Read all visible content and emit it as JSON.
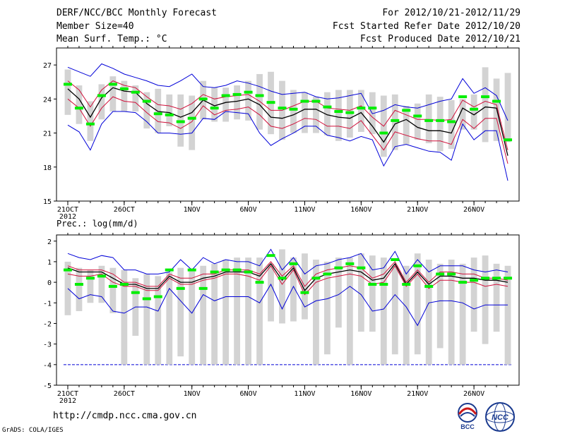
{
  "header": {
    "title": "DERF/NCC/BCC Monthly Forecast",
    "member_size": "Member Size=40",
    "variable": "Mean Surf. Temp.: °C",
    "period": "For 2012/10/21-2012/11/29",
    "fcst_started": "Fcst Started Refer Date 2012/10/20",
    "fcst_produced": "Fcst Produced Date 2012/10/21"
  },
  "lower_title": "Prec.: log(mm/d)",
  "footer": {
    "url": "http://cmdp.ncc.cma.gov.cn",
    "credit": "GrADS: COLA/IGES"
  },
  "logos": {
    "left": "BCC",
    "right": "NCC"
  },
  "colors": {
    "box": "#d3d3d3",
    "median": "#00ee00",
    "mean": "#000000",
    "spread": "#d0103a",
    "envelope": "#0000d8",
    "floor": "#0000d8"
  },
  "chart_data": [
    {
      "type": "line",
      "title": "Mean Surf. Temp.: °C",
      "ylim": [
        15,
        28.5
      ],
      "yticks": [
        15,
        18,
        21,
        24,
        27
      ],
      "x": [
        21,
        22,
        23,
        24,
        25,
        26,
        27,
        28,
        29,
        30,
        31,
        32,
        33,
        34,
        35,
        36,
        37,
        38,
        39,
        40,
        41,
        42,
        43,
        44,
        45,
        46,
        47,
        48,
        49,
        50,
        51,
        52,
        53,
        54,
        55,
        56,
        57,
        58,
        59,
        60
      ],
      "xticks": [
        {
          "x": 21,
          "label": "21OCT",
          "sub": "2012"
        },
        {
          "x": 26,
          "label": "26OCT",
          "sub": ""
        },
        {
          "x": 32,
          "label": "1NOV",
          "sub": ""
        },
        {
          "x": 37,
          "label": "6NOV",
          "sub": ""
        },
        {
          "x": 42,
          "label": "11NOV",
          "sub": ""
        },
        {
          "x": 47,
          "label": "16NOV",
          "sub": ""
        },
        {
          "x": 52,
          "label": "21NOV",
          "sub": ""
        },
        {
          "x": 57,
          "label": "26NOV",
          "sub": ""
        }
      ],
      "box_high": [
        26.6,
        25.2,
        23.8,
        25.3,
        26.0,
        25.6,
        25.2,
        24.6,
        24.9,
        24.4,
        24.4,
        24.3,
        25.6,
        25.0,
        25.0,
        25.2,
        25.6,
        26.2,
        26.4,
        25.6,
        24.8,
        24.6,
        24.2,
        24.6,
        24.8,
        24.8,
        24.8,
        24.6,
        24.3,
        24.4,
        23.4,
        23.6,
        24.4,
        24.2,
        23.9,
        24.0,
        24.4,
        26.8,
        25.8,
        26.3
      ],
      "box_low": [
        22.6,
        21.8,
        20.3,
        22.2,
        22.9,
        22.9,
        22.9,
        21.4,
        21.0,
        21.6,
        19.8,
        19.5,
        22.2,
        22.0,
        22.0,
        22.2,
        22.1,
        21.3,
        20.9,
        20.4,
        21.0,
        21.0,
        21.0,
        20.8,
        20.3,
        20.6,
        21.1,
        20.9,
        18.9,
        19.5,
        20.0,
        20.4,
        20.1,
        19.4,
        19.6,
        21.3,
        21.3,
        20.2,
        20.3,
        20.2
      ],
      "median": [
        25.3,
        23.2,
        21.8,
        24.3,
        25.3,
        24.9,
        24.6,
        23.8,
        22.7,
        22.6,
        22.0,
        22.3,
        24.0,
        23.2,
        24.3,
        24.4,
        24.6,
        24.3,
        23.7,
        23.2,
        23.1,
        23.8,
        23.8,
        23.3,
        22.9,
        22.8,
        23.2,
        23.2,
        21.0,
        22.1,
        23.0,
        22.5,
        22.1,
        22.1,
        22.0,
        24.2,
        23.1,
        24.2,
        23.8,
        20.4
      ],
      "upper_env": [
        26.8,
        26.4,
        26.0,
        27.1,
        26.7,
        26.2,
        25.9,
        25.6,
        25.2,
        25.1,
        25.6,
        26.2,
        25.1,
        25.0,
        25.2,
        25.6,
        25.4,
        25.1,
        24.7,
        24.4,
        24.5,
        24.6,
        24.2,
        24.0,
        24.1,
        24.3,
        24.5,
        22.7,
        23.0,
        23.5,
        23.3,
        23.2,
        23.5,
        23.8,
        24.0,
        25.8,
        24.5,
        25.0,
        24.3,
        22.1
      ],
      "upper_red": [
        25.6,
        24.8,
        23.3,
        24.8,
        25.6,
        25.2,
        25.0,
        24.2,
        23.5,
        23.4,
        23.1,
        23.6,
        24.4,
        24.0,
        24.2,
        24.3,
        24.4,
        23.8,
        23.0,
        23.0,
        23.4,
        23.8,
        23.8,
        23.2,
        23.1,
        23.0,
        23.4,
        22.4,
        21.6,
        23.0,
        22.6,
        22.2,
        22.2,
        22.1,
        22.2,
        23.9,
        23.3,
        23.8,
        23.5,
        19.5
      ],
      "mean": [
        24.9,
        24.0,
        22.4,
        24.1,
        25.0,
        24.7,
        24.6,
        23.6,
        22.9,
        22.8,
        22.4,
        22.8,
        23.9,
        23.4,
        23.7,
        23.8,
        24.0,
        23.5,
        22.4,
        22.3,
        22.6,
        23.1,
        23.1,
        22.6,
        22.4,
        22.3,
        22.8,
        21.6,
        20.2,
        21.8,
        22.2,
        21.5,
        21.2,
        21.2,
        21.0,
        23.2,
        22.6,
        23.3,
        23.2,
        19.0
      ],
      "lower_red": [
        24.0,
        23.2,
        21.6,
        23.2,
        24.2,
        23.8,
        23.7,
        22.8,
        22.0,
        21.9,
        21.4,
        22.0,
        23.4,
        22.6,
        23.0,
        23.1,
        23.3,
        22.6,
        21.6,
        21.4,
        21.8,
        22.3,
        22.2,
        21.6,
        21.6,
        21.4,
        22.1,
        20.8,
        19.5,
        21.1,
        20.8,
        20.5,
        20.3,
        20.3,
        20.0,
        22.2,
        21.4,
        22.3,
        22.3,
        18.3
      ],
      "lower_env": [
        21.7,
        21.1,
        19.5,
        21.8,
        22.9,
        22.9,
        22.8,
        22.0,
        21.0,
        21.0,
        20.9,
        21.0,
        22.3,
        22.2,
        22.9,
        22.8,
        22.7,
        21.0,
        19.9,
        20.5,
        21.0,
        21.6,
        21.6,
        20.8,
        20.6,
        20.3,
        20.7,
        20.4,
        18.1,
        19.8,
        20.0,
        19.7,
        19.4,
        19.3,
        18.6,
        21.8,
        20.4,
        21.2,
        21.2,
        16.8
      ]
    },
    {
      "type": "line",
      "title": "Prec.: log(mm/d)",
      "ylim": [
        -5,
        2.3
      ],
      "yticks": [
        -5,
        -4,
        -3,
        -2,
        -1,
        0,
        1,
        2
      ],
      "x": [
        21,
        22,
        23,
        24,
        25,
        26,
        27,
        28,
        29,
        30,
        31,
        32,
        33,
        34,
        35,
        36,
        37,
        38,
        39,
        40,
        41,
        42,
        43,
        44,
        45,
        46,
        47,
        48,
        49,
        50,
        51,
        52,
        53,
        54,
        55,
        56,
        57,
        58,
        59,
        60
      ],
      "xticks": [
        {
          "x": 21,
          "label": "21OCT",
          "sub": "2012"
        },
        {
          "x": 26,
          "label": "26OCT",
          "sub": ""
        },
        {
          "x": 32,
          "label": "1NOV",
          "sub": ""
        },
        {
          "x": 37,
          "label": "6NOV",
          "sub": ""
        },
        {
          "x": 42,
          "label": "11NOV",
          "sub": ""
        },
        {
          "x": 47,
          "label": "16NOV",
          "sub": ""
        },
        {
          "x": 52,
          "label": "21NOV",
          "sub": ""
        },
        {
          "x": 57,
          "label": "26NOV",
          "sub": ""
        }
      ],
      "box_high": [
        1.0,
        0.7,
        0.6,
        0.8,
        0.7,
        0.6,
        0.2,
        0.4,
        0.3,
        0.5,
        0.7,
        0.6,
        0.8,
        0.9,
        1.1,
        1.2,
        1.2,
        1.2,
        0.9,
        1.6,
        1.2,
        1.4,
        1.1,
        1.0,
        1.2,
        1.2,
        1.4,
        1.3,
        1.2,
        0.8,
        0.8,
        1.4,
        1.1,
        0.9,
        1.1,
        0.9,
        1.2,
        1.3,
        0.9,
        0.8
      ],
      "box_low": [
        -1.6,
        -1.4,
        -1.0,
        -1.0,
        -1.5,
        -4.0,
        -2.6,
        -4.0,
        -4.0,
        -4.0,
        -3.6,
        -4.0,
        -4.0,
        -4.0,
        -4.0,
        -4.0,
        -4.0,
        -4.0,
        -1.9,
        -2.0,
        -1.9,
        -1.8,
        -4.0,
        -3.5,
        -2.2,
        -4.0,
        -2.4,
        -2.4,
        -4.0,
        -3.5,
        -4.0,
        -3.5,
        -4.0,
        -3.2,
        -4.0,
        -4.0,
        -2.4,
        -3.0,
        -2.4,
        -4.0
      ],
      "median": [
        0.6,
        -0.1,
        0.2,
        0.3,
        -0.2,
        -0.1,
        -0.5,
        -0.8,
        -0.7,
        0.6,
        -0.3,
        0.6,
        -0.3,
        0.5,
        0.6,
        0.6,
        0.5,
        0.0,
        1.3,
        0.2,
        0.9,
        -0.5,
        0.2,
        0.4,
        0.7,
        0.9,
        0.7,
        -0.1,
        -0.1,
        1.1,
        -0.1,
        0.8,
        -0.2,
        0.4,
        0.4,
        0.0,
        0.1,
        0.2,
        0.2,
        0.2
      ],
      "upper_env": [
        1.4,
        1.2,
        1.1,
        1.3,
        1.2,
        0.6,
        0.6,
        0.4,
        0.4,
        0.5,
        1.1,
        0.6,
        1.2,
        0.9,
        1.1,
        1.0,
        1.0,
        0.8,
        1.6,
        0.6,
        1.2,
        0.4,
        0.8,
        0.9,
        1.1,
        1.2,
        1.4,
        0.6,
        0.7,
        1.5,
        0.4,
        1.1,
        0.5,
        0.8,
        0.8,
        0.8,
        0.6,
        0.5,
        0.6,
        0.5
      ],
      "upper_red": [
        0.8,
        0.6,
        0.6,
        0.6,
        0.4,
        0.0,
        0.0,
        -0.2,
        -0.2,
        0.4,
        0.2,
        0.2,
        0.4,
        0.4,
        0.6,
        0.6,
        0.6,
        0.4,
        1.0,
        0.3,
        0.8,
        -0.2,
        0.4,
        0.6,
        0.7,
        0.8,
        0.7,
        0.2,
        0.4,
        1.0,
        0.0,
        0.6,
        0.0,
        0.5,
        0.5,
        0.4,
        0.4,
        0.2,
        0.2,
        0.1
      ],
      "mean": [
        0.7,
        0.5,
        0.5,
        0.5,
        0.2,
        -0.1,
        -0.1,
        -0.3,
        -0.3,
        0.3,
        0.0,
        0.0,
        0.2,
        0.3,
        0.5,
        0.5,
        0.5,
        0.3,
        0.9,
        0.1,
        0.7,
        -0.4,
        0.2,
        0.4,
        0.5,
        0.6,
        0.5,
        0.1,
        0.2,
        0.9,
        -0.1,
        0.5,
        -0.1,
        0.3,
        0.3,
        0.2,
        0.2,
        0.1,
        0.1,
        0.0
      ],
      "lower_red": [
        0.4,
        0.3,
        0.3,
        0.4,
        0.0,
        -0.2,
        -0.2,
        -0.4,
        -0.4,
        0.2,
        -0.1,
        -0.1,
        0.1,
        0.2,
        0.4,
        0.4,
        0.3,
        0.1,
        0.8,
        -0.1,
        0.6,
        -0.6,
        0.0,
        0.2,
        0.3,
        0.4,
        0.3,
        -0.1,
        0.0,
        0.8,
        -0.2,
        0.4,
        -0.3,
        0.1,
        0.1,
        0.0,
        0.0,
        -0.2,
        -0.1,
        -0.2
      ],
      "lower_env": [
        -0.3,
        -0.8,
        -0.6,
        -0.7,
        -1.4,
        -1.5,
        -1.2,
        -1.2,
        -1.4,
        -0.3,
        -0.9,
        -1.5,
        -0.6,
        -0.9,
        -0.7,
        -0.7,
        -0.7,
        -1.0,
        -0.1,
        -1.3,
        -0.2,
        -1.2,
        -0.9,
        -0.8,
        -0.6,
        -0.2,
        -0.6,
        -1.4,
        -1.3,
        -0.6,
        -1.2,
        -2.1,
        -1.0,
        -0.9,
        -0.9,
        -1.0,
        -1.3,
        -1.1,
        -1.1,
        -1.1
      ],
      "floor_value": -4
    }
  ]
}
